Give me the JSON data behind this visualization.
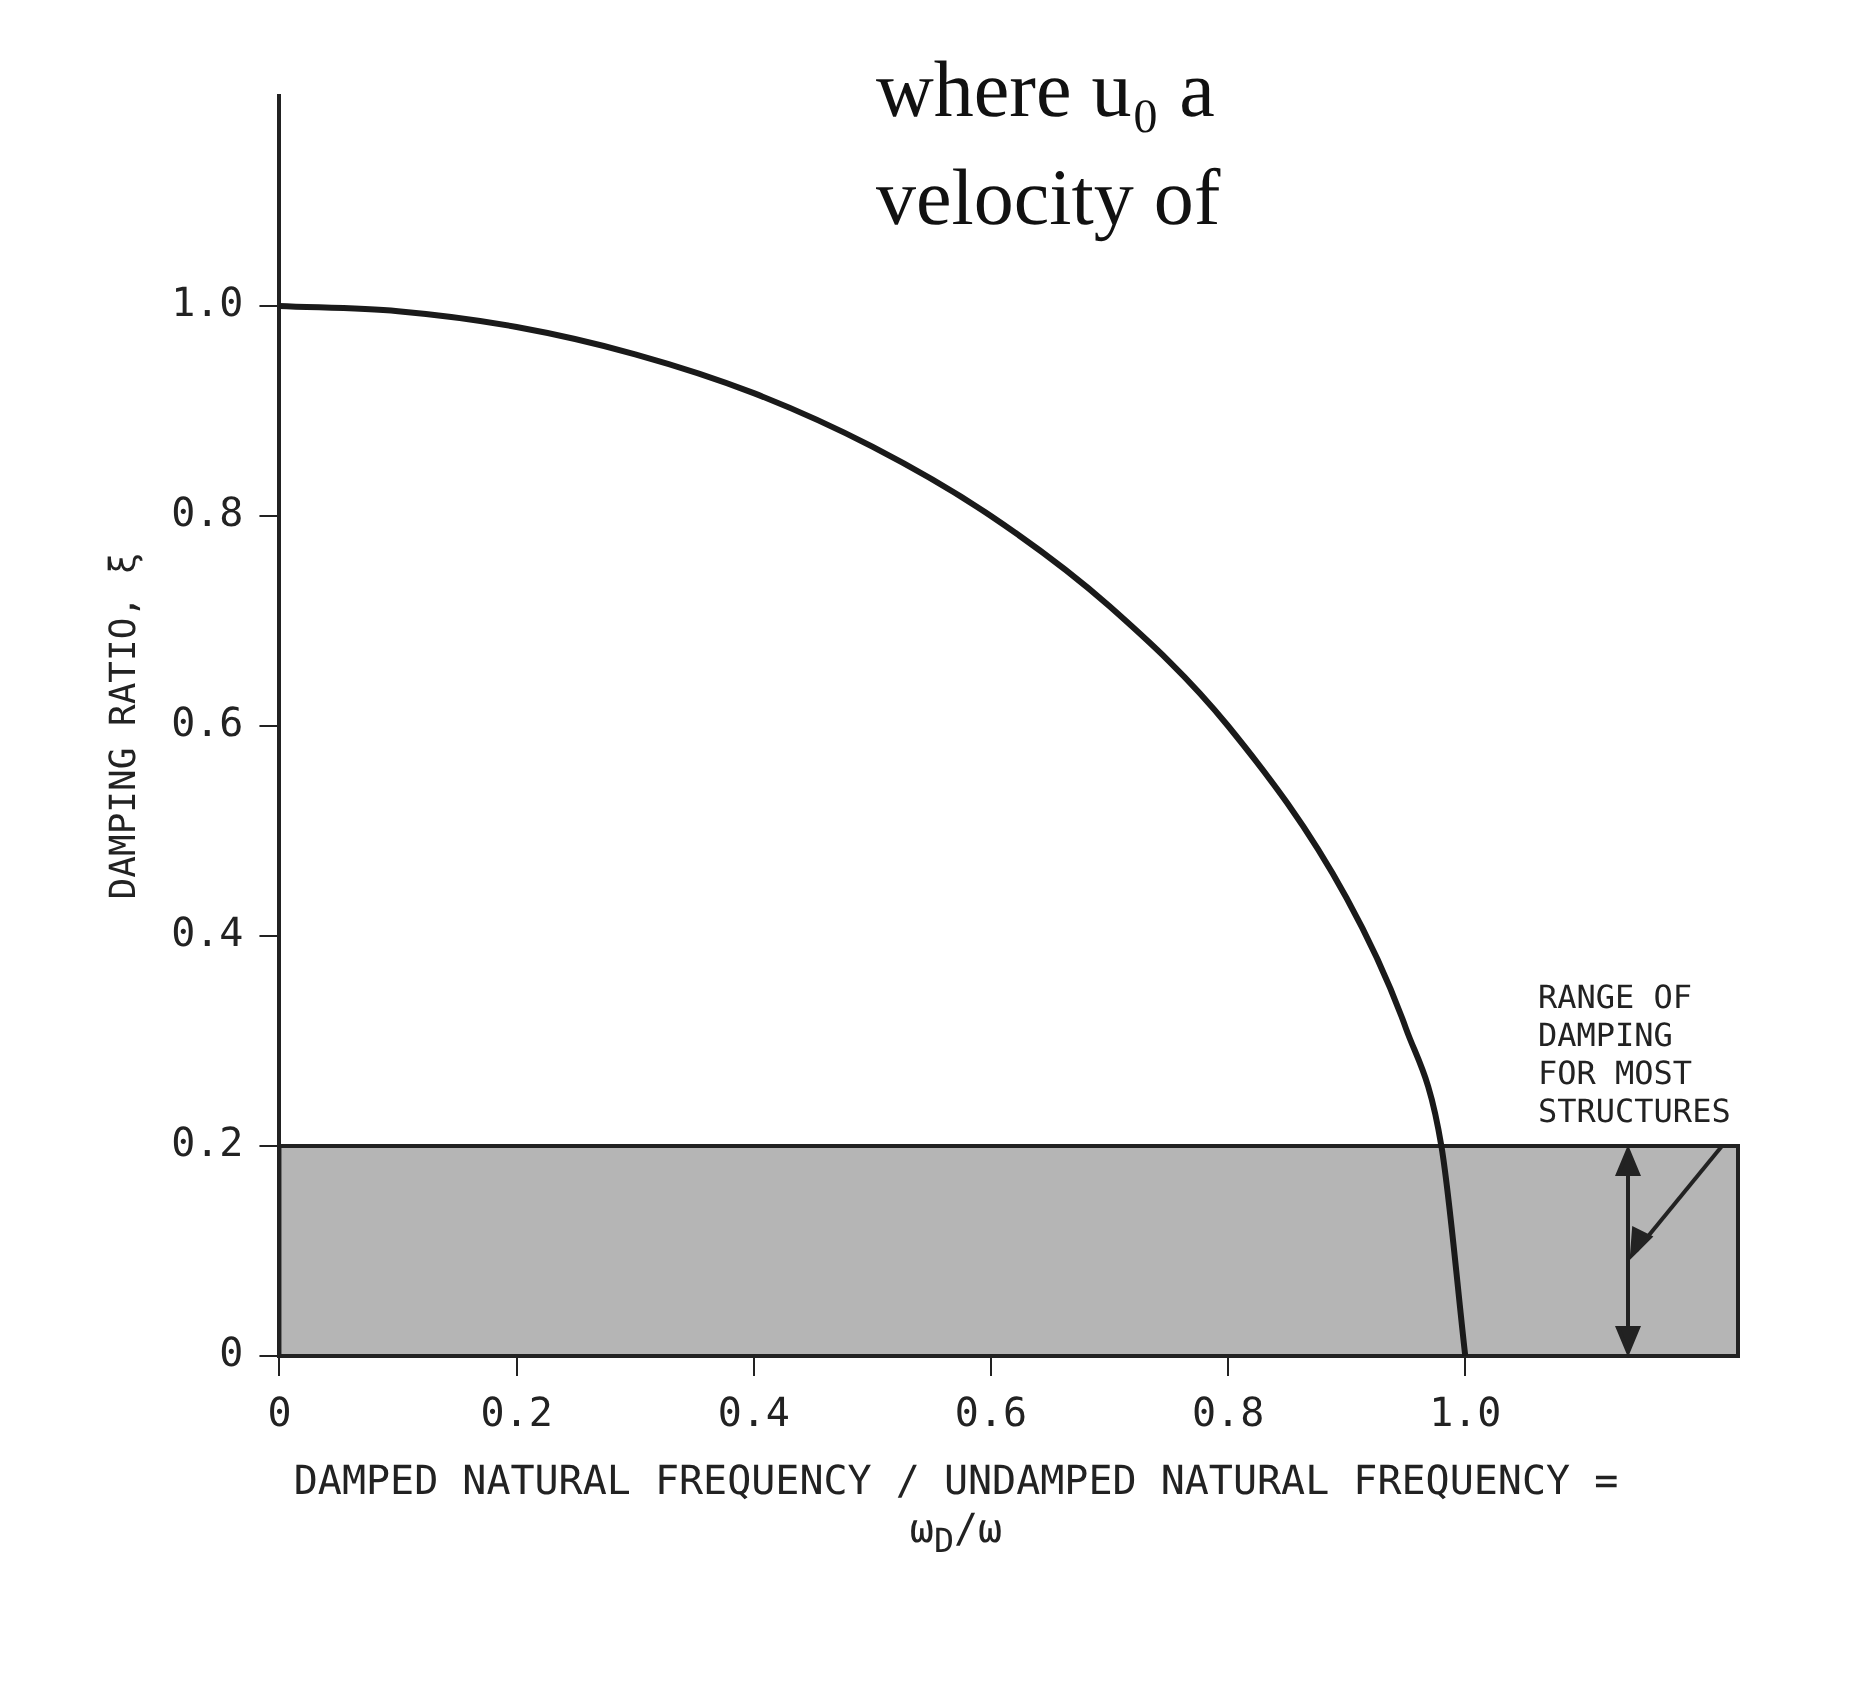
{
  "chart_data": {
    "type": "line",
    "xlabel": "DAMPED NATURAL FREQUENCY / UNDAMPED NATURAL FREQUENCY = ω$_{D}$/ω",
    "ylabel": "DAMPING RATIO, ξ",
    "x": [
      0,
      0.1,
      0.2,
      0.3,
      0.4,
      0.5,
      0.6,
      0.7,
      0.8,
      0.9,
      0.95,
      0.98,
      1.0
    ],
    "series": [
      {
        "color": "#1a1a1a",
        "values": [
          1,
          0.995,
          0.98,
          0.954,
          0.917,
          0.866,
          0.8,
          0.714,
          0.6,
          0.436,
          0.312,
          0.199,
          0
        ]
      }
    ],
    "xlim": [
      0,
      1.23
    ],
    "ylim": [
      0,
      1.2
    ],
    "xticks": [
      0,
      0.2,
      0.4,
      0.6,
      0.8,
      {
        "value": 1,
        "label": "1.0"
      }
    ],
    "yticks": [
      0,
      0.2,
      0.4,
      0.6,
      0.8,
      {
        "value": 1,
        "label": "1.0"
      }
    ],
    "bands": [
      {
        "axis": "y",
        "from": 0,
        "to": 0.2,
        "label": "RANGE OF DAMPING FOR MOST STRUCTURES",
        "color": "#b5b5b5"
      }
    ],
    "annotations": [
      "where u₀ a",
      "velocity of"
    ],
    "grid": false,
    "legend": false,
    "marker": "none",
    "line_style": "solid"
  }
}
